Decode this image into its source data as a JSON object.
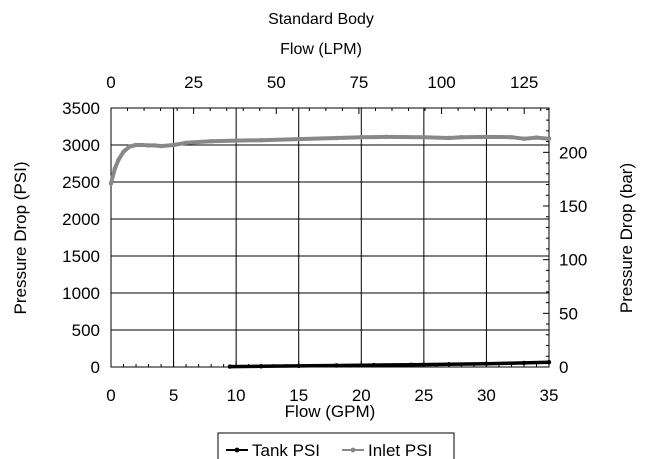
{
  "chart_data": {
    "type": "line",
    "title": "Standard Body",
    "xlabel": "Flow (GPM)",
    "x2label": "Flow (LPM)",
    "ylabel": "Pressure Drop (PSI)",
    "y2label": "Pressure Drop (bar)",
    "xlim": [
      0,
      35
    ],
    "ylim": [
      0,
      3500
    ],
    "x2lim": [
      0,
      132.5
    ],
    "y2lim": [
      0,
      241.3
    ],
    "x_ticks": [
      "0",
      "5",
      "10",
      "15",
      "20",
      "25",
      "30",
      "35"
    ],
    "x2_ticks": [
      "0",
      "25",
      "50",
      "75",
      "100",
      "125"
    ],
    "y_ticks": [
      "0",
      "500",
      "1000",
      "1500",
      "2000",
      "2500",
      "3000",
      "3500"
    ],
    "y2_ticks": [
      "0",
      "50",
      "100",
      "150",
      "200"
    ],
    "grid": true,
    "legend_position": "bottom-center",
    "series": [
      {
        "name": "Tank PSI",
        "color": "#000000",
        "x": [
          9.5,
          12,
          15,
          18,
          21,
          24,
          27,
          30,
          33,
          35
        ],
        "y": [
          5,
          10,
          15,
          20,
          25,
          30,
          38,
          45,
          55,
          65
        ]
      },
      {
        "name": "Inlet PSI",
        "color": "#888888",
        "x": [
          0,
          0.3,
          0.6,
          1.0,
          1.5,
          2.0,
          2.5,
          3.0,
          3.5,
          4.0,
          5.0,
          6.0,
          8.0,
          10.0,
          12.0,
          15.0,
          18.0,
          20.0,
          22.0,
          25.0,
          27.0,
          28.0,
          30.0,
          32.0,
          33.0,
          34.0,
          35.0
        ],
        "y": [
          2480,
          2680,
          2800,
          2910,
          2980,
          3000,
          3000,
          2995,
          2995,
          2985,
          3000,
          3030,
          3050,
          3060,
          3065,
          3080,
          3095,
          3105,
          3110,
          3105,
          3095,
          3105,
          3110,
          3105,
          3085,
          3100,
          3085
        ]
      }
    ]
  }
}
